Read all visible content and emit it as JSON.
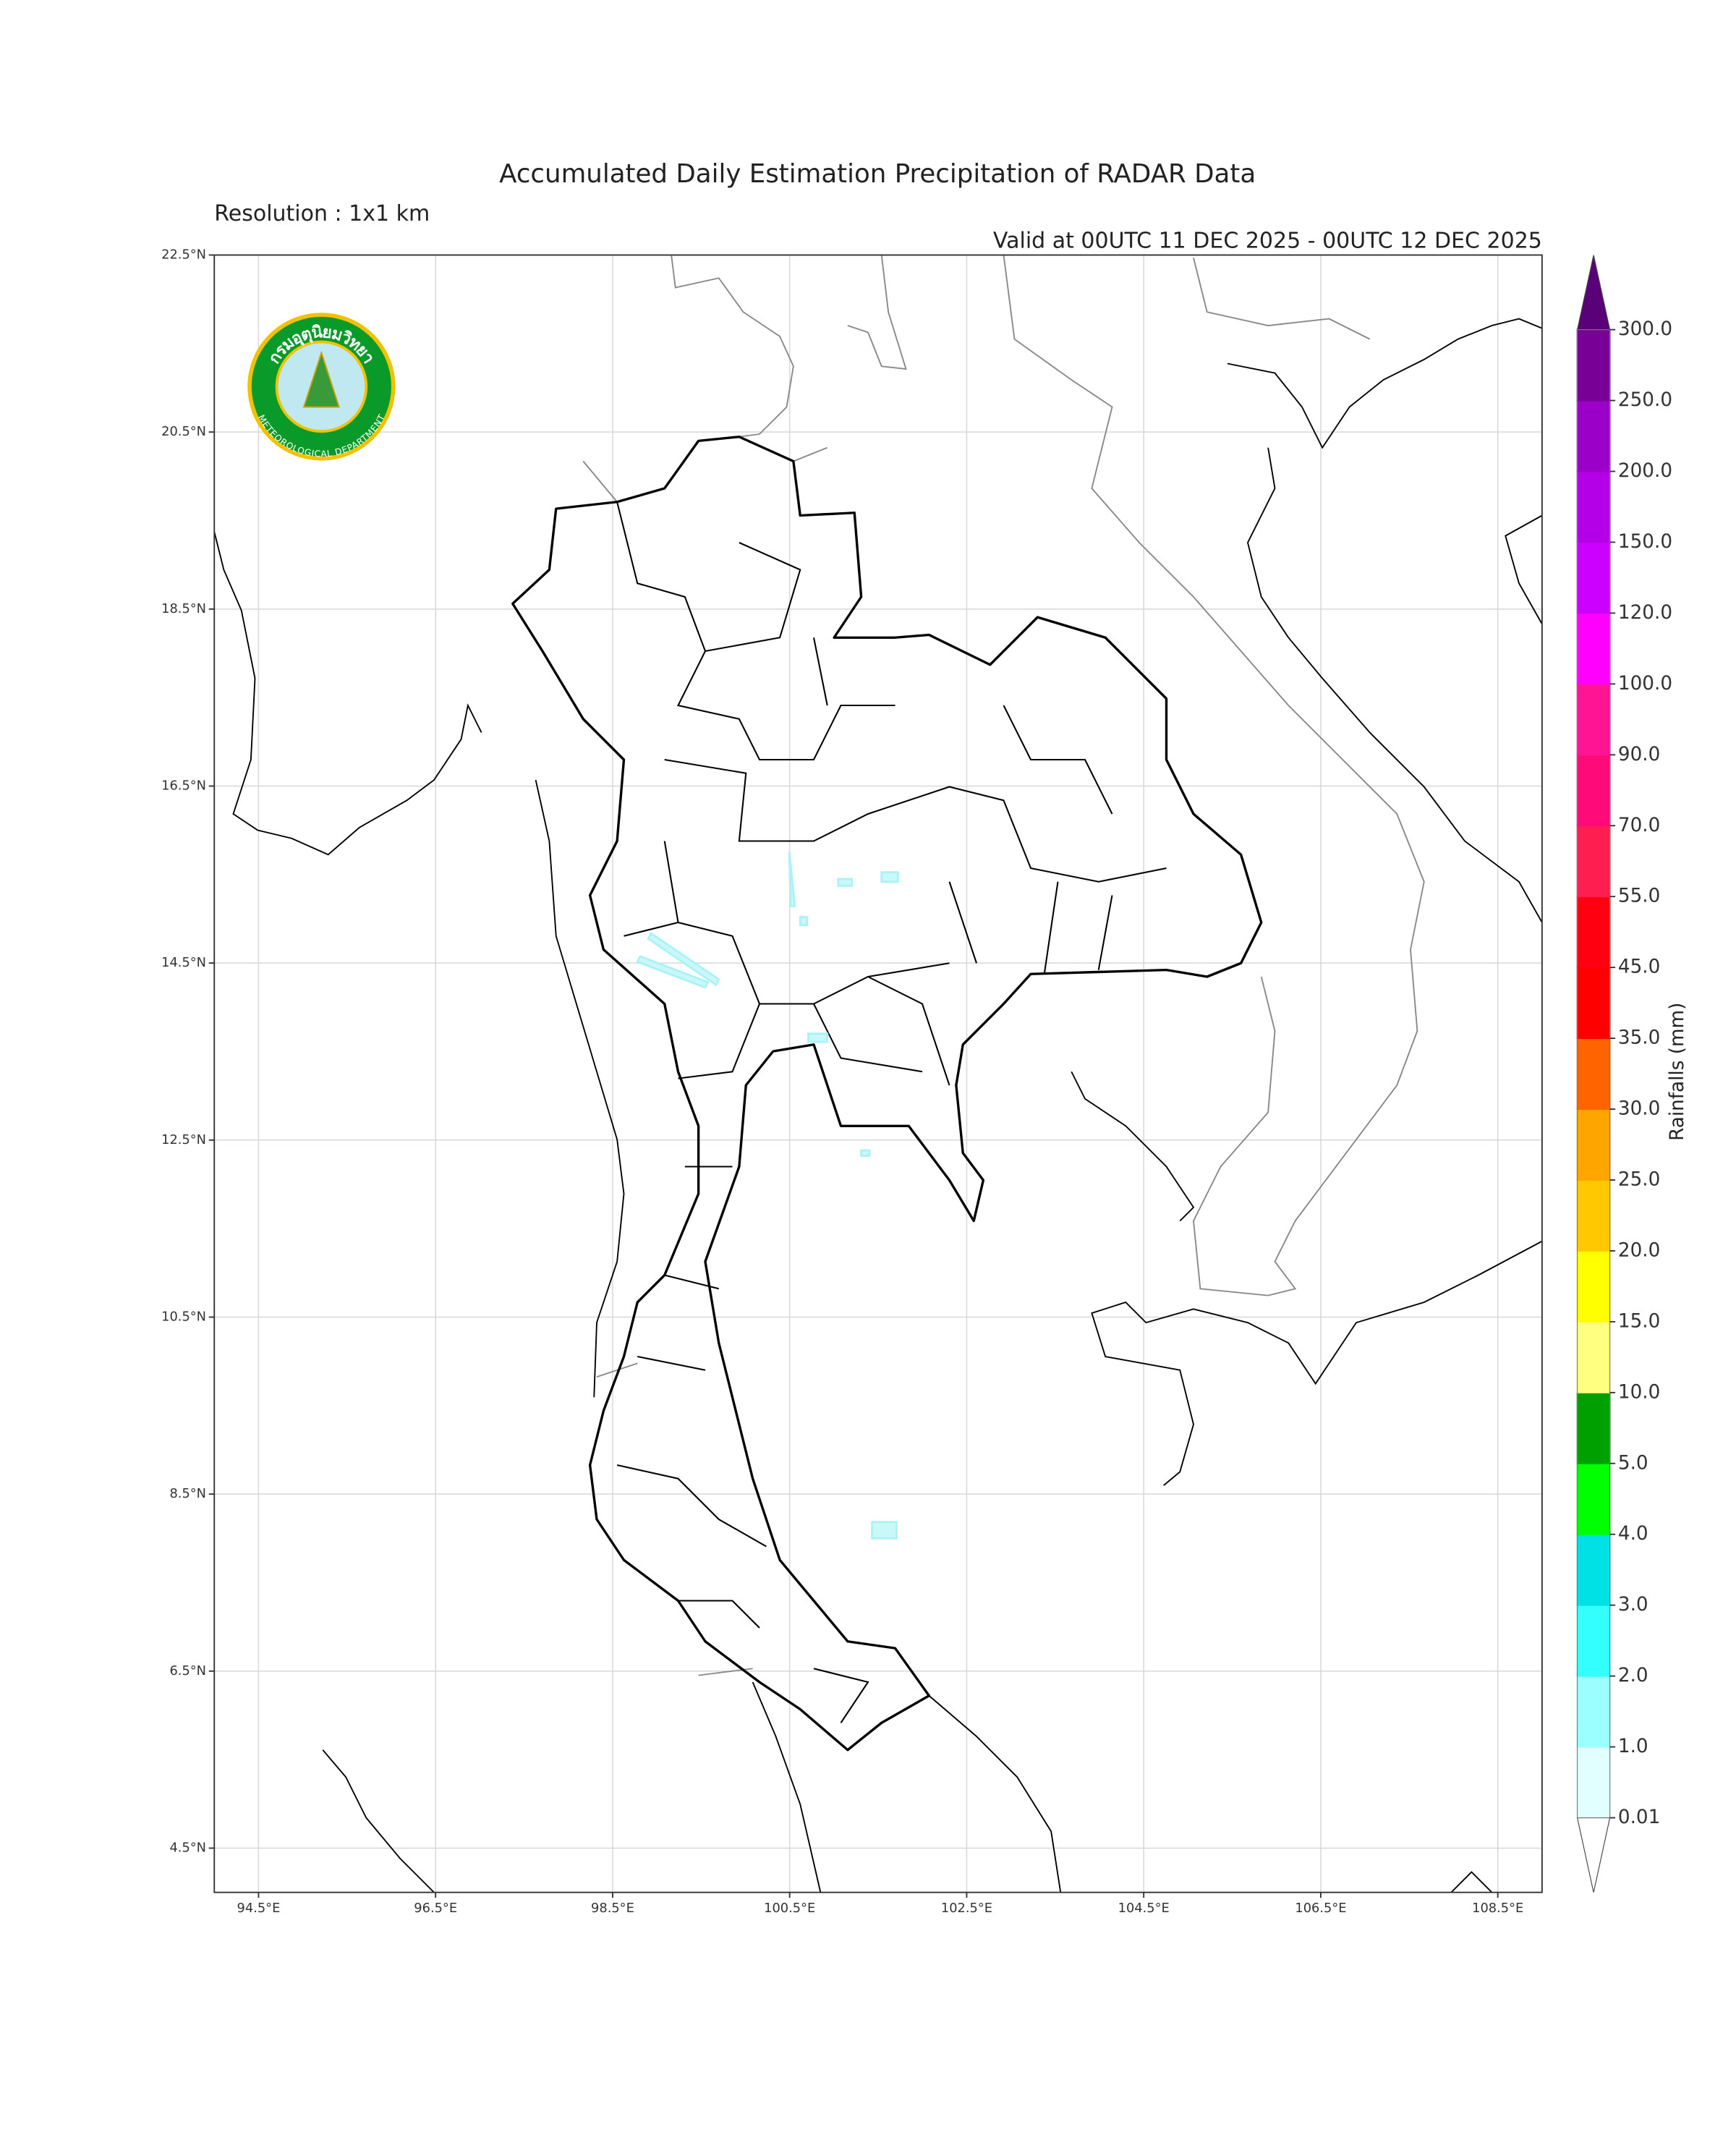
{
  "header": {
    "title": "Accumulated Daily Estimation Precipitation of RADAR Data",
    "resolution": "Resolution : 1x1 km",
    "valid": "Valid at 00UTC 11 DEC 2025 - 00UTC 12 DEC 2025"
  },
  "logo": {
    "thai_name": "กรมอุตุนิยมวิทยา",
    "english_name": "METEOROLOGICAL DEPARTMENT"
  },
  "chart_data": {
    "type": "map",
    "xlim": [
      94.0,
      109.0
    ],
    "ylim": [
      4.0,
      22.5
    ],
    "grid": true,
    "xticks": [
      {
        "value": 94.5,
        "label": "94.5°E"
      },
      {
        "value": 96.5,
        "label": "96.5°E"
      },
      {
        "value": 98.5,
        "label": "98.5°E"
      },
      {
        "value": 100.5,
        "label": "100.5°E"
      },
      {
        "value": 102.5,
        "label": "102.5°E"
      },
      {
        "value": 104.5,
        "label": "104.5°E"
      },
      {
        "value": 106.5,
        "label": "106.5°E"
      },
      {
        "value": 108.5,
        "label": "108.5°E"
      }
    ],
    "yticks": [
      {
        "value": 22.5,
        "label": "22.5°N"
      },
      {
        "value": 20.5,
        "label": "20.5°N"
      },
      {
        "value": 18.5,
        "label": "18.5°N"
      },
      {
        "value": 16.5,
        "label": "16.5°N"
      },
      {
        "value": 14.5,
        "label": "14.5°N"
      },
      {
        "value": 12.5,
        "label": "12.5°N"
      },
      {
        "value": 10.5,
        "label": "10.5°N"
      },
      {
        "value": 8.5,
        "label": "8.5°N"
      },
      {
        "value": 6.5,
        "label": "6.5°N"
      },
      {
        "value": 4.5,
        "label": "4.5°N"
      }
    ],
    "colorbar": {
      "label": "Rainfalls (mm)",
      "levels": [
        0.01,
        {
          "value": 1,
          "label": "1.0"
        },
        {
          "value": 2,
          "label": "2.0"
        },
        {
          "value": 3,
          "label": "3.0"
        },
        {
          "value": 4,
          "label": "4.0"
        },
        {
          "value": 5,
          "label": "5.0"
        },
        {
          "value": 10,
          "label": "10.0"
        },
        {
          "value": 15,
          "label": "15.0"
        },
        {
          "value": 20,
          "label": "20.0"
        },
        {
          "value": 25,
          "label": "25.0"
        },
        {
          "value": 30,
          "label": "30.0"
        },
        {
          "value": 35,
          "label": "35.0"
        },
        {
          "value": 45,
          "label": "45.0"
        },
        {
          "value": 55,
          "label": "55.0"
        },
        {
          "value": 70,
          "label": "70.0"
        },
        {
          "value": 90,
          "label": "90.0"
        },
        {
          "value": 100,
          "label": "100.0"
        },
        {
          "value": 120,
          "label": "120.0"
        },
        {
          "value": 150,
          "label": "150.0"
        },
        {
          "value": 200,
          "label": "200.0"
        },
        {
          "value": 250,
          "label": "250.0"
        },
        {
          "value": 300,
          "label": "300.0"
        }
      ],
      "colors": [
        "#e1ffff",
        "#9cffff",
        "#33ffff",
        "#00e1e6",
        "#00ff00",
        "#00a000",
        "#ffff80",
        "#ffff00",
        "#ffc800",
        "#ffa500",
        "#ff6400",
        "#ff0000",
        "#ff0010",
        "#ff1e50",
        "#ff0a78",
        "#ff1493",
        "#ff00ff",
        "#cc00ff",
        "#b400e6",
        "#9b00c8",
        "#780096"
      ],
      "under_color": "#ffffff",
      "over_color": "#5a0078"
    }
  }
}
